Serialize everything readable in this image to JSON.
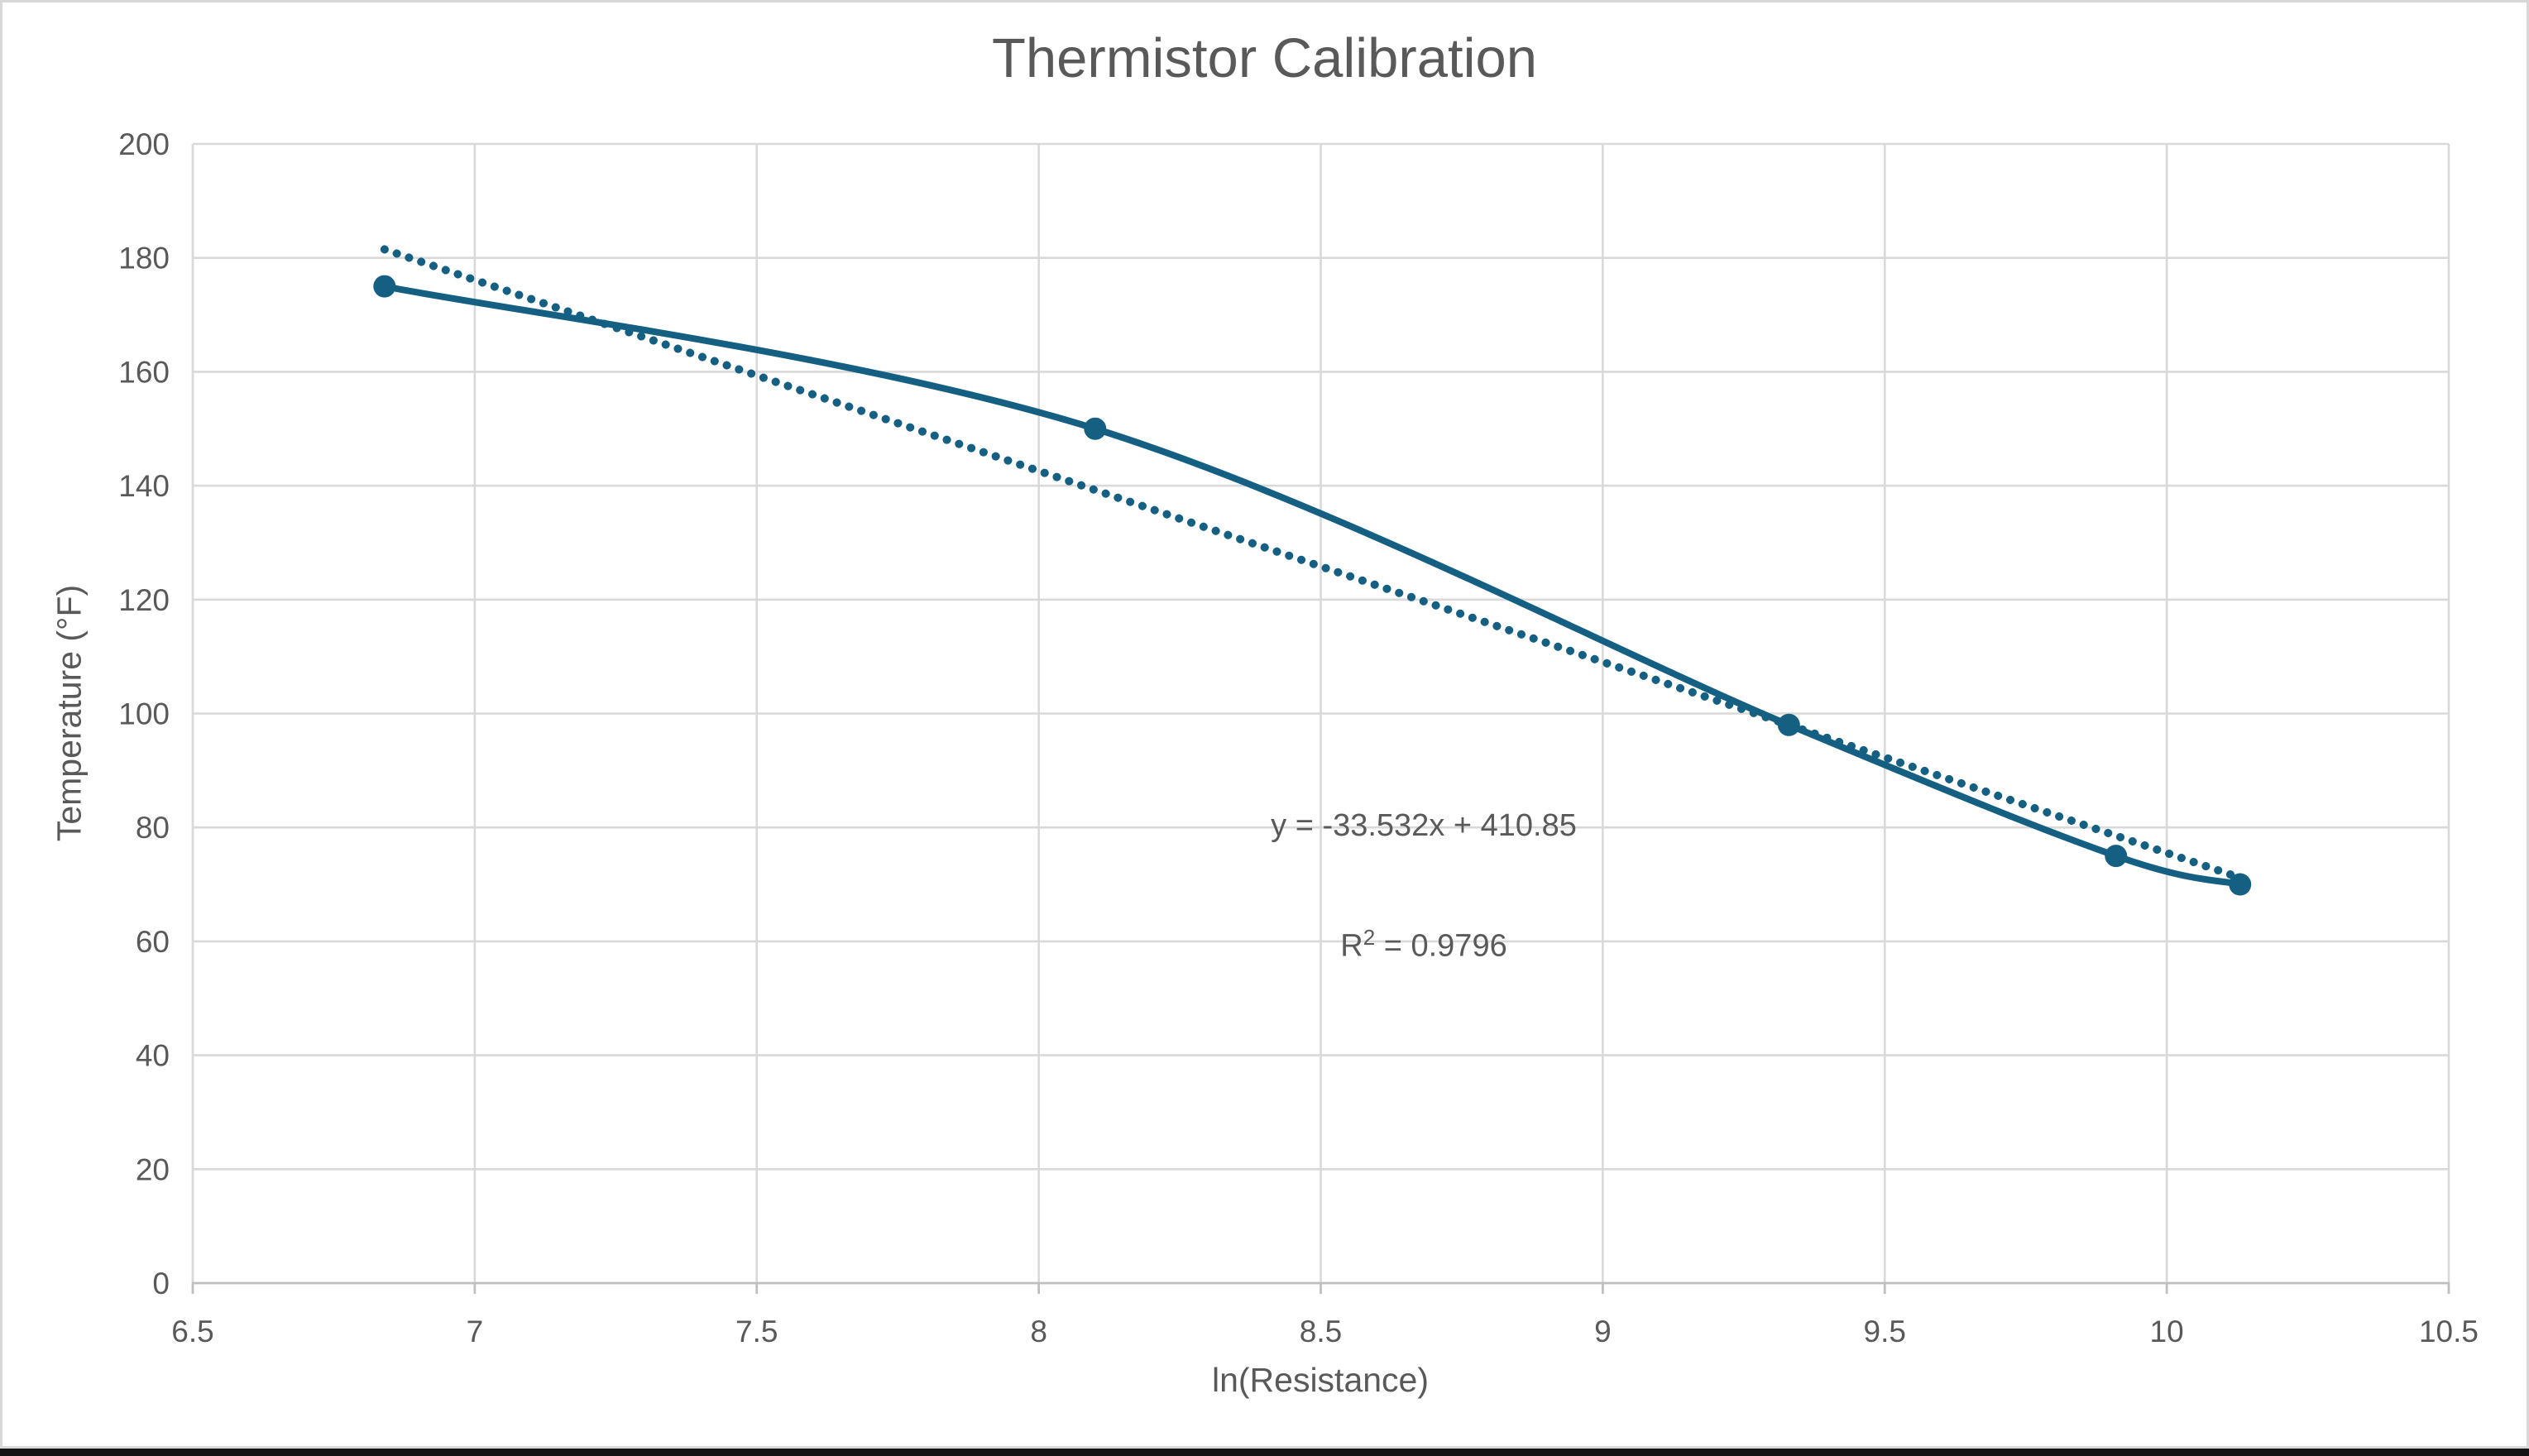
{
  "chart_data": {
    "type": "scatter",
    "title": "Thermistor Calibration",
    "xlabel": "ln(Resistance)",
    "ylabel": "Temperature (°F)",
    "xlim": [
      6.5,
      10.5
    ],
    "ylim": [
      0,
      200
    ],
    "x_ticks": [
      "6.5",
      "7",
      "7.5",
      "8",
      "8.5",
      "9",
      "9.5",
      "10",
      "10.5"
    ],
    "y_ticks": [
      "0",
      "20",
      "40",
      "60",
      "80",
      "100",
      "120",
      "140",
      "160",
      "180",
      "200"
    ],
    "grid": true,
    "legend": "none",
    "series": [
      {
        "name": "thermistor-calibration-points",
        "line": "smooth",
        "marker": "circle",
        "x": [
          6.84,
          8.1,
          9.33,
          9.91,
          10.13
        ],
        "y": [
          175,
          150,
          98,
          75,
          70
        ]
      }
    ],
    "trendline": {
      "type": "linear",
      "slope": -33.532,
      "intercept": 410.85,
      "x_range": [
        6.84,
        10.13
      ],
      "style": "dotted"
    },
    "annotation": {
      "equation": "y = -33.532x + 410.85",
      "r2_prefix": "R",
      "r2_sup": "2",
      "r2_suffix": " = 0.9796"
    },
    "colors": {
      "series": "#156082",
      "gridline": "#d9d9d9",
      "axis": "#bfbfbf",
      "tick_text": "#595959",
      "title_text": "#595959",
      "annotation_text": "#595959"
    }
  }
}
